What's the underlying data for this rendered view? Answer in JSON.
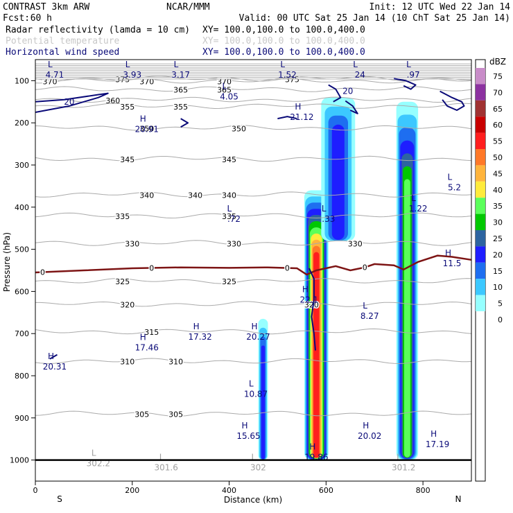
{
  "header": {
    "model": "CONTRAST  3km ARW",
    "center": "NCAR/MMM",
    "init": "Init: 12 UTC Wed 22 Jan 14",
    "fcst_label": "Fcst:",
    "fcst_value": "60 h",
    "valid": "Valid: 00 UTC Sat 25 Jan 14 (10 ChT Sat 25 Jan 14)",
    "fields": [
      {
        "name": "Radar reflectivity (lamda = 10 cm)",
        "xy": "XY= 100.0,100.0 to 100.0,400.0",
        "color": "#000000"
      },
      {
        "name": "Potential temperature",
        "xy": "XY= 100.0,100.0 to 100.0,400.0",
        "color": "#c8c8c8"
      },
      {
        "name": "Horizontal wind speed",
        "xy": "XY= 100.0,100.0 to 100.0,400.0",
        "color": "#0a0a78"
      }
    ]
  },
  "chart_data": {
    "type": "heatmap",
    "xlabel": "Distance (km)",
    "ylabel": "Pressure (hPa)",
    "xlim": [
      0,
      900
    ],
    "ylim": [
      1050,
      50
    ],
    "x_ticks": [
      0,
      200,
      400,
      600,
      800
    ],
    "y_ticks": [
      100,
      200,
      300,
      400,
      500,
      600,
      700,
      800,
      900,
      1000
    ],
    "x_end_labels": {
      "left": "S",
      "right": "N"
    },
    "colorbar": {
      "unit": "dBZ",
      "levels": [
        0,
        5,
        10,
        15,
        20,
        25,
        30,
        35,
        40,
        45,
        50,
        55,
        60,
        65,
        70,
        75
      ],
      "colors": [
        "#ffffff",
        "#96ffff",
        "#3cc8ff",
        "#1e6ef0",
        "#1e1eff",
        "#2d64a0",
        "#00c800",
        "#5aff5a",
        "#ffeb3c",
        "#ffb43c",
        "#ff7828",
        "#ff1e1e",
        "#c80000",
        "#a03232",
        "#8c32a0",
        "#c88cc8"
      ]
    },
    "theta_contours": [
      {
        "value": 375,
        "p": 95,
        "labels": [
          180,
          530
        ]
      },
      {
        "value": 370,
        "p": 100,
        "labels": [
          30,
          230,
          390
        ]
      },
      {
        "value": 365,
        "p": 120,
        "labels": [
          300,
          390
        ]
      },
      {
        "value": 360,
        "p": 145,
        "labels": [
          160
        ]
      },
      {
        "value": 355,
        "p": 160,
        "labels": [
          190,
          300
        ]
      },
      {
        "value": 350,
        "p": 212,
        "labels": [
          230,
          420
        ]
      },
      {
        "value": 345,
        "p": 285,
        "labels": [
          190,
          400
        ]
      },
      {
        "value": 340,
        "p": 370,
        "labels": [
          230,
          330,
          400
        ]
      },
      {
        "value": 335,
        "p": 420,
        "labels": [
          180,
          400
        ]
      },
      {
        "value": 330,
        "p": 485,
        "labels": [
          200,
          410,
          660
        ]
      },
      {
        "value": 325,
        "p": 575,
        "labels": [
          180,
          400
        ]
      },
      {
        "value": 320,
        "p": 630,
        "labels": [
          190,
          570
        ]
      },
      {
        "value": 315,
        "p": 695,
        "labels": [
          240
        ]
      },
      {
        "value": 310,
        "p": 765,
        "labels": [
          190,
          290
        ]
      },
      {
        "value": 305,
        "p": 890,
        "labels": [
          220,
          290
        ]
      }
    ],
    "freezing_level": {
      "label": "0",
      "points": [
        [
          0,
          555
        ],
        [
          100,
          550
        ],
        [
          200,
          545
        ],
        [
          300,
          543
        ],
        [
          400,
          544
        ],
        [
          480,
          543
        ],
        [
          540,
          545
        ],
        [
          560,
          560
        ],
        [
          580,
          550
        ],
        [
          620,
          540
        ],
        [
          650,
          550
        ],
        [
          680,
          543
        ],
        [
          700,
          535
        ],
        [
          740,
          538
        ],
        [
          760,
          548
        ],
        [
          790,
          530
        ],
        [
          830,
          515
        ],
        [
          860,
          518
        ],
        [
          900,
          525
        ]
      ],
      "label_x": [
        15,
        240,
        520,
        680
      ]
    },
    "extrema": [
      {
        "type": "L",
        "value": "4.71",
        "x": 40,
        "p": 78
      },
      {
        "type": "L",
        "value": "3.93",
        "x": 200,
        "p": 78
      },
      {
        "type": "L",
        "value": "3.17",
        "x": 300,
        "p": 78
      },
      {
        "type": "L",
        "value": "1.52",
        "x": 520,
        "p": 78
      },
      {
        "type": "L",
        "value": "24",
        "x": 670,
        "p": 78
      },
      {
        "type": "L",
        "value": ".97",
        "x": 780,
        "p": 78
      },
      {
        "type": "L",
        "value": "4.05",
        "x": 400,
        "p": 130
      },
      {
        "type": "H",
        "value": "21.12",
        "x": 550,
        "p": 178
      },
      {
        "type": "H",
        "value": "20.91",
        "x": 230,
        "p": 207
      },
      {
        "type": "L",
        "value": "5.2",
        "x": 865,
        "p": 345
      },
      {
        "type": "L",
        "value": ".72",
        "x": 410,
        "p": 420
      },
      {
        "type": "L",
        "value": ".33",
        "x": 605,
        "p": 420
      },
      {
        "type": "L",
        "value": "1.22",
        "x": 790,
        "p": 395
      },
      {
        "type": "H",
        "value": "11.5",
        "x": 860,
        "p": 525
      },
      {
        "type": "H",
        "value": "22.1",
        "x": 565,
        "p": 612
      },
      {
        "type": "L",
        "value": "8.27",
        "x": 690,
        "p": 650
      },
      {
        "type": "H",
        "value": "17.32",
        "x": 340,
        "p": 700
      },
      {
        "type": "H",
        "value": "20.27",
        "x": 460,
        "p": 700
      },
      {
        "type": "H",
        "value": "17.46",
        "x": 230,
        "p": 725
      },
      {
        "type": "H",
        "value": "20.31",
        "x": 40,
        "p": 770
      },
      {
        "type": "L",
        "value": "10.87",
        "x": 455,
        "p": 835
      },
      {
        "type": "H",
        "value": "15.65",
        "x": 440,
        "p": 935
      },
      {
        "type": "H",
        "value": "20.02",
        "x": 690,
        "p": 935
      },
      {
        "type": "H",
        "value": "17.19",
        "x": 830,
        "p": 955
      },
      {
        "type": "H",
        "value": "19.86",
        "x": 580,
        "p": 985
      },
      {
        "type": "L",
        "value": "302.2",
        "x": 130,
        "p": 1000
      },
      {
        "type": "L",
        "value": "301.6",
        "x": 270,
        "p": 1010
      },
      {
        "type": "L",
        "value": "302",
        "x": 460,
        "p": 1010
      },
      {
        "type": "L",
        "value": "301.2",
        "x": 760,
        "p": 1010
      }
    ],
    "wind_contours_value": "20",
    "ground_p": 1000,
    "reflectivity_cells": [
      {
        "x0": 460,
        "x1": 480,
        "ptop": 665,
        "pbot": 1000,
        "max_level": 4
      },
      {
        "x0": 555,
        "x1": 605,
        "ptop": 360,
        "pbot": 1000,
        "max_level": 11
      },
      {
        "x0": 590,
        "x1": 660,
        "ptop": 140,
        "pbot": 480,
        "max_level": 4
      },
      {
        "x0": 745,
        "x1": 790,
        "ptop": 150,
        "pbot": 1000,
        "max_level": 7
      }
    ]
  }
}
